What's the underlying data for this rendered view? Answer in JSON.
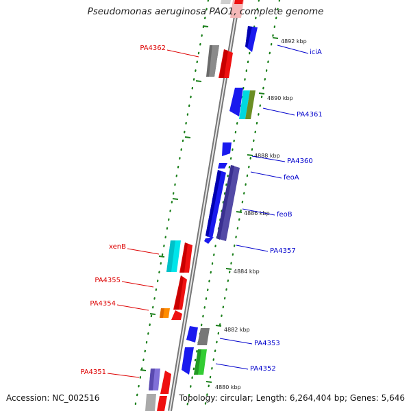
{
  "title": "Pseudomonas aeruginosa PAO1, complete genome",
  "footer": {
    "accession": "Accession: NC_002516",
    "summary": "Topology: circular; Length: 6,264,404 bp; Genes: 5,646"
  },
  "colors": {
    "forward_label": "#0000cc",
    "reverse_label": "#dd0000",
    "tick": "#1a7f1a",
    "backbone": "#888888"
  },
  "ticks": [
    {
      "label": "4892 kbp"
    },
    {
      "label": "4890 kbp"
    },
    {
      "label": "4888 kbp"
    },
    {
      "label": "4886 kbp"
    },
    {
      "label": "4884 kbp"
    },
    {
      "label": "4882 kbp"
    },
    {
      "label": "4880 kbp"
    }
  ],
  "forward_genes": [
    {
      "label": "iciA",
      "color": "#1a1aee"
    },
    {
      "label": "PA4361",
      "color": "#1a1aee"
    },
    {
      "label": "PA4360",
      "color": "#1a1aee"
    },
    {
      "label": "feoA",
      "color": "#1a1aee"
    },
    {
      "label": "feoB",
      "color": "#1a1aee"
    },
    {
      "label": "PA4357",
      "color": "#534aa6"
    },
    {
      "label": "PA4353",
      "color": "#1a1aee"
    },
    {
      "label": "PA4352",
      "color": "#1a1aee"
    }
  ],
  "reverse_genes": [
    {
      "label": "PA4362",
      "color": "#666666"
    },
    {
      "label": "xenB",
      "color": "#00e0e6"
    },
    {
      "label": "PA4355",
      "color": "#ee1111"
    },
    {
      "label": "PA4354",
      "color": "#ff8c00"
    },
    {
      "label": "PA4351",
      "color": "#7a6ad0"
    }
  ]
}
